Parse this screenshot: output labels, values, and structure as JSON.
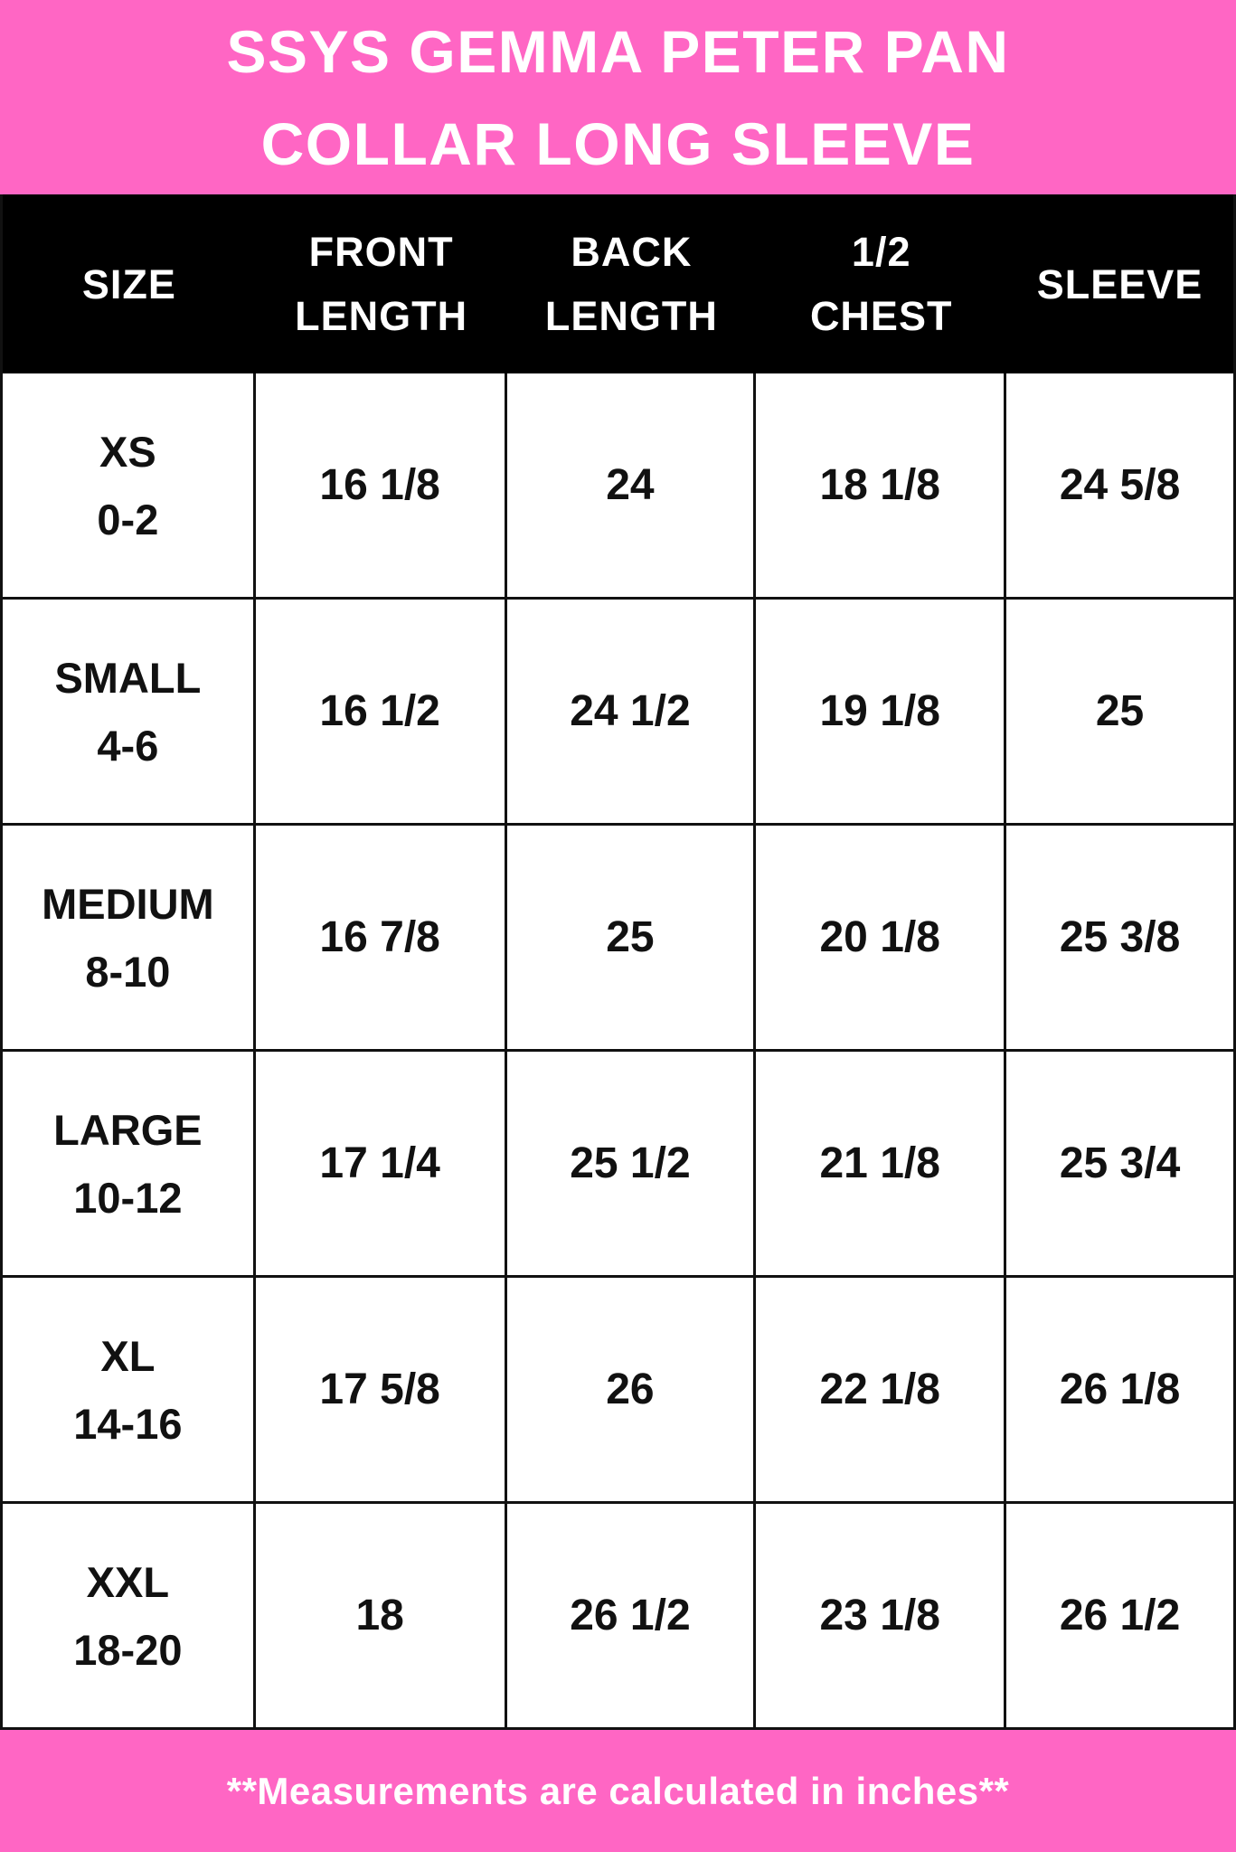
{
  "colors": {
    "header_pink": "#FF66C4",
    "footer_pink": "#FF66C4",
    "header_row_bg": "#000000",
    "header_row_text": "#FFFFFF",
    "banner_text": "#FFFFFF",
    "body_text": "#111111",
    "border": "#111111"
  },
  "chart_data": {
    "type": "table",
    "title": "SSYS GEMMA PETER PAN COLLAR LONG SLEEVE",
    "title_lines": [
      "SSYS GEMMA PETER PAN",
      "COLLAR LONG SLEEVE"
    ],
    "columns": [
      "SIZE",
      "FRONT LENGTH",
      "BACK LENGTH",
      "1/2 CHEST",
      "SLEEVE"
    ],
    "column_lines": [
      [
        "SIZE"
      ],
      [
        "FRONT",
        "LENGTH"
      ],
      [
        "BACK",
        "LENGTH"
      ],
      [
        "1/2",
        "CHEST"
      ],
      [
        "SLEEVE"
      ]
    ],
    "rows": [
      {
        "size": "XS",
        "size_range": "0-2",
        "front_length": "16 1/8",
        "back_length": "24",
        "half_chest": "18 1/8",
        "sleeve": "24 5/8"
      },
      {
        "size": "SMALL",
        "size_range": "4-6",
        "front_length": "16 1/2",
        "back_length": "24 1/2",
        "half_chest": "19 1/8",
        "sleeve": "25"
      },
      {
        "size": "MEDIUM",
        "size_range": "8-10",
        "front_length": "16 7/8",
        "back_length": "25",
        "half_chest": "20 1/8",
        "sleeve": "25 3/8"
      },
      {
        "size": "LARGE",
        "size_range": "10-12",
        "front_length": "17 1/4",
        "back_length": "25 1/2",
        "half_chest": "21 1/8",
        "sleeve": "25 3/4"
      },
      {
        "size": "XL",
        "size_range": "14-16",
        "front_length": "17 5/8",
        "back_length": "26",
        "half_chest": "22 1/8",
        "sleeve": "26 1/8"
      },
      {
        "size": "XXL",
        "size_range": "18-20",
        "front_length": "18",
        "back_length": "26 1/2",
        "half_chest": "23 1/8",
        "sleeve": "26 1/2"
      }
    ],
    "footnote": "**Measurements are calculated in inches**"
  }
}
